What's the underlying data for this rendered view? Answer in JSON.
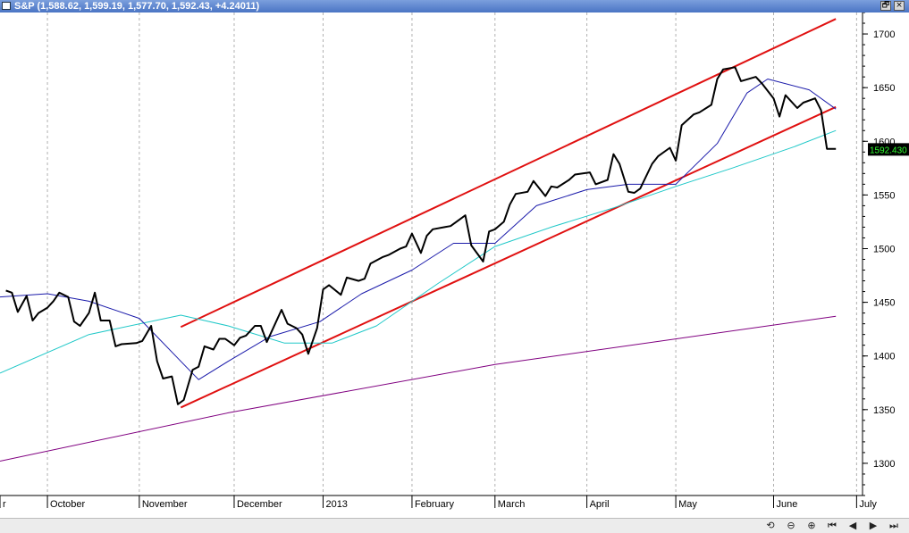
{
  "window": {
    "title": "S&P (1,588.62, 1,599.19, 1,577.70, 1,592.43, +4.24011)",
    "restore_glyph": "🗗",
    "close_glyph": "×"
  },
  "controls": {
    "items": [
      {
        "name": "scroll-back-icon",
        "glyph": "⟲"
      },
      {
        "name": "zoom-out-icon",
        "glyph": "⊖"
      },
      {
        "name": "zoom-in-icon",
        "glyph": "⊕"
      },
      {
        "name": "scroll-first-icon",
        "glyph": "⏮"
      },
      {
        "name": "scroll-left-icon",
        "glyph": "◀"
      },
      {
        "name": "scroll-right-icon",
        "glyph": "▶"
      },
      {
        "name": "scroll-last-icon",
        "glyph": "⏭"
      }
    ]
  },
  "chart_data": {
    "type": "line",
    "title": "S&P",
    "ylim": [
      1270,
      1720
    ],
    "y_ticks": [
      1300,
      1350,
      1400,
      1450,
      1500,
      1550,
      1600,
      1650,
      1700
    ],
    "last_value_label": "1592.430",
    "last_value": 1592.43,
    "xlim": [
      "2012-09-15",
      "2013-07-03"
    ],
    "x_ticks": [
      {
        "label": "r",
        "date": "2012-09-15"
      },
      {
        "label": "October",
        "date": "2012-10-01"
      },
      {
        "label": "November",
        "date": "2012-11-01"
      },
      {
        "label": "December",
        "date": "2012-12-03"
      },
      {
        "label": "2013",
        "date": "2013-01-02"
      },
      {
        "label": "February",
        "date": "2013-02-01"
      },
      {
        "label": "March",
        "date": "2013-03-01"
      },
      {
        "label": "April",
        "date": "2013-04-01"
      },
      {
        "label": "May",
        "date": "2013-05-01"
      },
      {
        "label": "June",
        "date": "2013-06-03"
      },
      {
        "label": "July",
        "date": "2013-07-01"
      }
    ],
    "grid": true,
    "colors": {
      "price": "#000000",
      "ma_short": "#1a1aaa",
      "ma_mid": "#20c8c8",
      "ma_long": "#800080",
      "channel": "#e01010",
      "price_box": "#000000",
      "price_box_text": "#30ff30"
    },
    "series": [
      {
        "key": "price",
        "x": [
          "2012-09-17",
          "2012-09-19",
          "2012-09-21",
          "2012-09-24",
          "2012-09-26",
          "2012-09-28",
          "2012-10-01",
          "2012-10-03",
          "2012-10-05",
          "2012-10-08",
          "2012-10-10",
          "2012-10-12",
          "2012-10-15",
          "2012-10-17",
          "2012-10-19",
          "2012-10-22",
          "2012-10-24",
          "2012-10-26",
          "2012-10-31",
          "2012-11-02",
          "2012-11-05",
          "2012-11-07",
          "2012-11-09",
          "2012-11-12",
          "2012-11-14",
          "2012-11-16",
          "2012-11-19",
          "2012-11-21",
          "2012-11-23",
          "2012-11-26",
          "2012-11-28",
          "2012-11-30",
          "2012-12-03",
          "2012-12-05",
          "2012-12-07",
          "2012-12-10",
          "2012-12-12",
          "2012-12-14",
          "2012-12-17",
          "2012-12-19",
          "2012-12-21",
          "2012-12-24",
          "2012-12-26",
          "2012-12-28",
          "2012-12-31",
          "2013-01-02",
          "2013-01-04",
          "2013-01-08",
          "2013-01-10",
          "2013-01-14",
          "2013-01-16",
          "2013-01-18",
          "2013-01-22",
          "2013-01-24",
          "2013-01-28",
          "2013-01-30",
          "2013-02-01",
          "2013-02-04",
          "2013-02-06",
          "2013-02-08",
          "2013-02-12",
          "2013-02-14",
          "2013-02-19",
          "2013-02-21",
          "2013-02-25",
          "2013-02-27",
          "2013-03-01",
          "2013-03-04",
          "2013-03-06",
          "2013-03-08",
          "2013-03-12",
          "2013-03-14",
          "2013-03-18",
          "2013-03-20",
          "2013-03-22",
          "2013-03-26",
          "2013-03-28",
          "2013-04-02",
          "2013-04-04",
          "2013-04-08",
          "2013-04-10",
          "2013-04-12",
          "2013-04-15",
          "2013-04-17",
          "2013-04-19",
          "2013-04-23",
          "2013-04-25",
          "2013-04-29",
          "2013-05-01",
          "2013-05-03",
          "2013-05-07",
          "2013-05-09",
          "2013-05-13",
          "2013-05-15",
          "2013-05-17",
          "2013-05-21",
          "2013-05-23",
          "2013-05-28",
          "2013-05-30",
          "2013-06-03",
          "2013-06-05",
          "2013-06-07",
          "2013-06-11",
          "2013-06-13",
          "2013-06-17",
          "2013-06-19",
          "2013-06-21",
          "2013-06-24"
        ],
        "y": [
          1461,
          1459,
          1441,
          1456,
          1433,
          1440,
          1445,
          1451,
          1459,
          1455,
          1432,
          1428,
          1440,
          1459,
          1433,
          1433,
          1409,
          1411,
          1412,
          1414,
          1428,
          1395,
          1379,
          1381,
          1355,
          1359,
          1387,
          1390,
          1409,
          1406,
          1416,
          1416,
          1410,
          1417,
          1419,
          1428,
          1428,
          1413,
          1431,
          1443,
          1430,
          1426,
          1420,
          1402,
          1426,
          1462,
          1466,
          1457,
          1473,
          1470,
          1472,
          1486,
          1492,
          1494,
          1500,
          1502,
          1514,
          1496,
          1512,
          1518,
          1520,
          1521,
          1531,
          1503,
          1488,
          1516,
          1518,
          1525,
          1541,
          1551,
          1553,
          1563,
          1549,
          1558,
          1557,
          1564,
          1569,
          1571,
          1560,
          1564,
          1588,
          1579,
          1553,
          1552,
          1556,
          1579,
          1586,
          1594,
          1582,
          1615,
          1625,
          1627,
          1634,
          1658,
          1667,
          1669,
          1656,
          1660,
          1654,
          1640,
          1623,
          1643,
          1631,
          1636,
          1640,
          1629,
          1593,
          1593
        ]
      },
      {
        "key": "ma_short",
        "x": [
          "2012-09-15",
          "2012-10-01",
          "2012-10-15",
          "2012-11-01",
          "2012-11-15",
          "2012-11-21",
          "2012-12-01",
          "2012-12-15",
          "2013-01-01",
          "2013-01-15",
          "2013-02-01",
          "2013-02-15",
          "2013-03-01",
          "2013-03-15",
          "2013-04-01",
          "2013-04-15",
          "2013-05-01",
          "2013-05-15",
          "2013-05-25",
          "2013-06-01",
          "2013-06-15",
          "2013-06-24"
        ],
        "y": [
          1455,
          1458,
          1451,
          1435,
          1395,
          1378,
          1395,
          1418,
          1432,
          1458,
          1480,
          1505,
          1505,
          1540,
          1555,
          1560,
          1560,
          1598,
          1645,
          1658,
          1648,
          1630
        ]
      },
      {
        "key": "ma_mid",
        "x": [
          "2012-09-15",
          "2012-10-15",
          "2012-11-15",
          "2012-12-01",
          "2012-12-20",
          "2013-01-05",
          "2013-01-20",
          "2013-02-10",
          "2013-03-01",
          "2013-03-20",
          "2013-04-10",
          "2013-05-01",
          "2013-05-20",
          "2013-06-10",
          "2013-06-24"
        ],
        "y": [
          1384,
          1420,
          1438,
          1428,
          1412,
          1412,
          1428,
          1468,
          1502,
          1520,
          1538,
          1558,
          1575,
          1595,
          1610
        ]
      },
      {
        "key": "ma_long",
        "x": [
          "2012-09-15",
          "2012-12-01",
          "2013-03-01",
          "2013-06-24"
        ],
        "y": [
          1302,
          1347,
          1392,
          1437
        ]
      }
    ],
    "channel_lines": [
      {
        "key": "upper",
        "x": [
          "2012-11-15",
          "2013-06-24"
        ],
        "y": [
          1427,
          1714
        ]
      },
      {
        "key": "lower",
        "x": [
          "2012-11-15",
          "2013-06-24"
        ],
        "y": [
          1352,
          1632
        ]
      }
    ]
  }
}
